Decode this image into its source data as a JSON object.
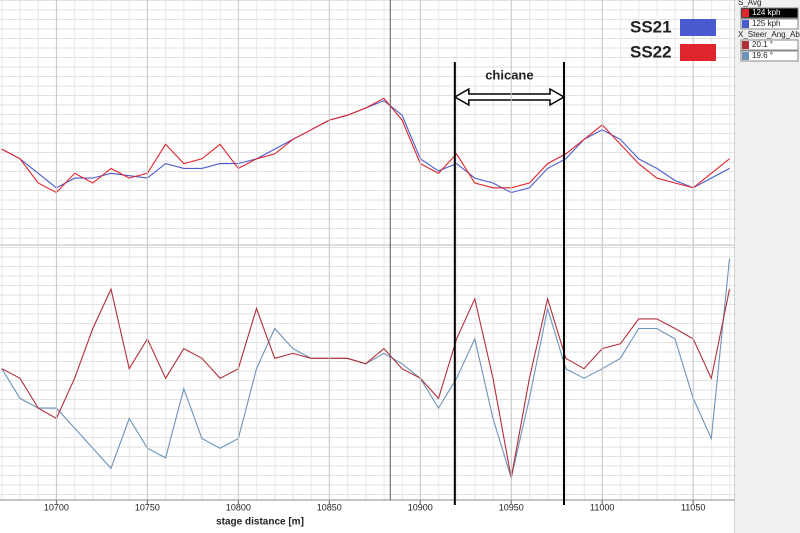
{
  "chart_data": [
    {
      "type": "line",
      "channel": "S_Avg",
      "ylim": [
        65,
        163
      ],
      "xlim": [
        10669,
        11073
      ],
      "cursor": 10883.5,
      "annotation": {
        "text": "chicane",
        "x": [
          10919,
          10979
        ]
      },
      "x": [
        10670,
        10680,
        10690,
        10700,
        10710,
        10720,
        10730,
        10740,
        10750,
        10760,
        10770,
        10780,
        10790,
        10800,
        10810,
        10820,
        10830,
        10840,
        10850,
        10860,
        10870,
        10880,
        10890,
        10900,
        10910,
        10920,
        10930,
        10940,
        10950,
        10960,
        10970,
        10980,
        10990,
        11000,
        11010,
        11020,
        11030,
        11040,
        11050,
        11060,
        11070
      ],
      "series": [
        {
          "name": "SS21",
          "color": "#4a5bd0",
          "readout": "125 kph",
          "values": [
            103,
            99,
            93,
            87,
            91,
            91,
            93,
            92,
            91,
            97,
            95,
            95,
            97,
            97,
            99,
            103,
            107,
            111,
            115,
            117,
            120,
            123,
            117,
            99,
            94,
            97,
            91,
            89,
            85,
            87,
            95,
            99,
            107,
            111,
            107,
            99,
            95,
            90,
            87,
            91,
            95
          ]
        },
        {
          "name": "SS22",
          "color": "#e0242c",
          "readout": "124 kph",
          "values": [
            103,
            99,
            89,
            85,
            93,
            89,
            95,
            91,
            93,
            105,
            97,
            99,
            105,
            95,
            99,
            101,
            107,
            111,
            115,
            117,
            120,
            124,
            115,
            97,
            93,
            101,
            89,
            87,
            87,
            89,
            97,
            101,
            107,
            113,
            105,
            97,
            91,
            89,
            87,
            93,
            99
          ]
        }
      ]
    },
    {
      "type": "line",
      "channel": "X_Steer_Ang_Abs",
      "ylim": [
        0,
        36
      ],
      "xlim": [
        10669,
        11073
      ],
      "xlabel": "stage distance [m]",
      "xticks": [
        10700,
        10750,
        10800,
        10850,
        10900,
        10950,
        11000,
        11050
      ],
      "x": [
        10670,
        10680,
        10690,
        10700,
        10710,
        10720,
        10730,
        10740,
        10750,
        10760,
        10770,
        10780,
        10790,
        10800,
        10810,
        10820,
        10830,
        10840,
        10850,
        10860,
        10870,
        10880,
        10890,
        10900,
        10910,
        10920,
        10930,
        10940,
        10950,
        10960,
        10970,
        10980,
        10990,
        11000,
        11010,
        11020,
        11030,
        11040,
        11050,
        11060,
        11070
      ],
      "series": [
        {
          "color": "#6e93b8",
          "readout": "19.6 °",
          "values": [
            18.7,
            14.4,
            13.0,
            13.0,
            10.1,
            7.2,
            4.3,
            11.5,
            7.2,
            5.8,
            15.8,
            8.6,
            7.2,
            8.6,
            18.7,
            24.5,
            21.6,
            20.2,
            20.2,
            20.2,
            19.4,
            20.9,
            19.4,
            17.3,
            13.0,
            17.3,
            23.0,
            11.5,
            2.9,
            14.4,
            27.4,
            18.7,
            17.3,
            18.7,
            20.2,
            24.5,
            24.5,
            23.0,
            14.4,
            8.6,
            34.6
          ]
        },
        {
          "color": "#b0303a",
          "readout": "20.1 °",
          "values": [
            18.7,
            17.3,
            13.0,
            11.5,
            17.3,
            24.5,
            30.2,
            18.7,
            23.0,
            17.3,
            21.6,
            20.2,
            17.3,
            18.7,
            27.4,
            20.2,
            20.9,
            20.2,
            20.2,
            20.2,
            19.4,
            21.6,
            18.7,
            17.3,
            14.4,
            23.0,
            28.8,
            17.3,
            2.9,
            17.3,
            28.8,
            20.2,
            18.7,
            21.6,
            22.3,
            25.9,
            25.9,
            24.5,
            23.0,
            17.3,
            30.2
          ]
        }
      ]
    }
  ]
}
